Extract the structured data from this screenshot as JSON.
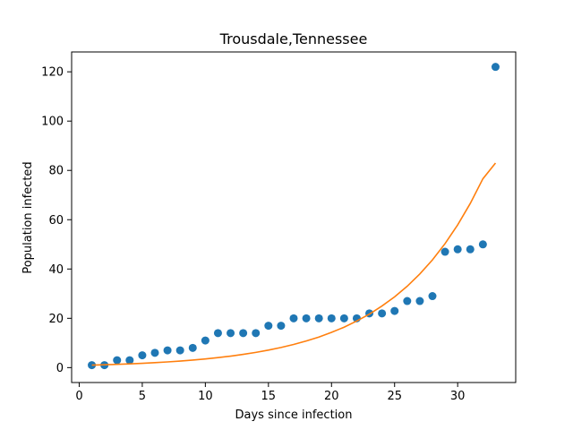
{
  "chart_data": {
    "type": "scatter",
    "title": "Trousdale,Tennessee",
    "xlabel": "Days since infection",
    "ylabel": "Population infected",
    "xlim": [
      -0.6,
      34.6
    ],
    "ylim": [
      -6.05,
      128.05
    ],
    "xticks": [
      0,
      5,
      10,
      15,
      20,
      25,
      30
    ],
    "yticks": [
      0,
      20,
      40,
      60,
      80,
      100,
      120
    ],
    "grid": false,
    "colors": {
      "points": "#1f77b4",
      "fit": "#ff7f0e"
    },
    "series": [
      {
        "type": "scatter",
        "x": [
          1,
          2,
          3,
          4,
          5,
          6,
          7,
          8,
          9,
          10,
          11,
          12,
          13,
          14,
          15,
          16,
          17,
          18,
          19,
          20,
          21,
          22,
          23,
          24,
          25,
          26,
          27,
          28,
          29,
          30,
          31,
          32,
          33
        ],
        "y": [
          1,
          1,
          3,
          3,
          5,
          6,
          7,
          7,
          8,
          11,
          14,
          14,
          14,
          14,
          17,
          17,
          20,
          20,
          20,
          20,
          20,
          20,
          22,
          22,
          23,
          27,
          27,
          29,
          47,
          48,
          48,
          50,
          122
        ]
      },
      {
        "type": "line",
        "x": [
          1,
          2,
          3,
          4,
          5,
          6,
          7,
          8,
          9,
          10,
          11,
          12,
          13,
          14,
          15,
          16,
          17,
          18,
          19,
          20,
          21,
          22,
          23,
          24,
          25,
          26,
          27,
          28,
          29,
          30,
          31,
          32,
          33
        ],
        "y": [
          1.0,
          1.15,
          1.32,
          1.52,
          1.75,
          2.01,
          2.31,
          2.66,
          3.06,
          3.52,
          4.05,
          4.66,
          5.36,
          6.17,
          7.1,
          8.17,
          9.4,
          10.8,
          12.4,
          14.3,
          16.4,
          18.9,
          21.7,
          25.0,
          28.7,
          33.0,
          38.0,
          43.7,
          50.3,
          57.9,
          66.6,
          76.6,
          83.0
        ]
      }
    ]
  }
}
